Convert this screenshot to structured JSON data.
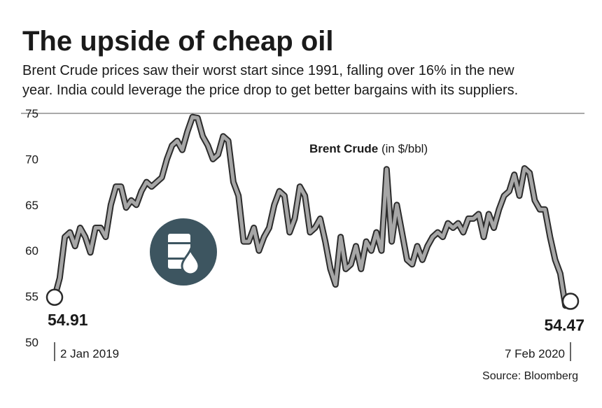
{
  "chart_data": {
    "type": "line",
    "title": "The upside of cheap oil",
    "subtitle": [
      "Brent Crude prices saw their worst start since 1991, falling over 16% in the new",
      "year. India could leverage the price drop to get better bargains with its suppliers."
    ],
    "source": "Source: Bloomberg",
    "series_name": "Brent Crude",
    "unit_label": "(in $/bbl)",
    "color": "#a6a6a6",
    "outline_color": "#2b2b2b",
    "categories": [
      "2 Jan 2019",
      null,
      null,
      null,
      null,
      null,
      null,
      null,
      null,
      null,
      null,
      null,
      null,
      null,
      null,
      null,
      null,
      null,
      null,
      null,
      null,
      null,
      null,
      null,
      null,
      null,
      null,
      null,
      null,
      null,
      null,
      null,
      null,
      null,
      null,
      null,
      null,
      null,
      null,
      null,
      null,
      null,
      null,
      null,
      null,
      null,
      null,
      null,
      null,
      null,
      null,
      null,
      null,
      null,
      null,
      null,
      null,
      null,
      null,
      null,
      null,
      null,
      null,
      null,
      null,
      null,
      null,
      null,
      null,
      null,
      null,
      null,
      null,
      null,
      null,
      null,
      null,
      null,
      null,
      null,
      null,
      null,
      null,
      null,
      null,
      null,
      null,
      null,
      null,
      null,
      null,
      null,
      null,
      null,
      null,
      null,
      null,
      null,
      null,
      null,
      null,
      "7 Feb 2020"
    ],
    "values": [
      54.91,
      57,
      61.5,
      62,
      60.5,
      62.5,
      61.5,
      59.8,
      62.5,
      62.5,
      61.5,
      65,
      67,
      67,
      64.7,
      65.5,
      65,
      66.5,
      67.5,
      67,
      67.5,
      68,
      70,
      71.5,
      72,
      71,
      73,
      74.6,
      74.5,
      72.5,
      71.5,
      70,
      70.5,
      72.5,
      72,
      67.5,
      66,
      61,
      61,
      62.5,
      60,
      61.5,
      62.5,
      65,
      66.5,
      66,
      62,
      63.5,
      67,
      66,
      62,
      62.5,
      63.5,
      61,
      58,
      56.3,
      61.5,
      58,
      58.5,
      60.5,
      58,
      61,
      60,
      62,
      60,
      68.9,
      61,
      65,
      62,
      59,
      58.5,
      60.5,
      59,
      60.5,
      61.5,
      62,
      61.5,
      63,
      62.5,
      63,
      62,
      63.5,
      63.5,
      64,
      61.5,
      64,
      62.5,
      64.5,
      66,
      66.5,
      68.3,
      66,
      69,
      68.5,
      65.5,
      64.5,
      64.5,
      61.5,
      59,
      57.5,
      54,
      54.47
    ],
    "ylim": [
      50,
      75
    ],
    "yticks": [
      50,
      55,
      60,
      65,
      70,
      75
    ],
    "grid": false
  }
}
